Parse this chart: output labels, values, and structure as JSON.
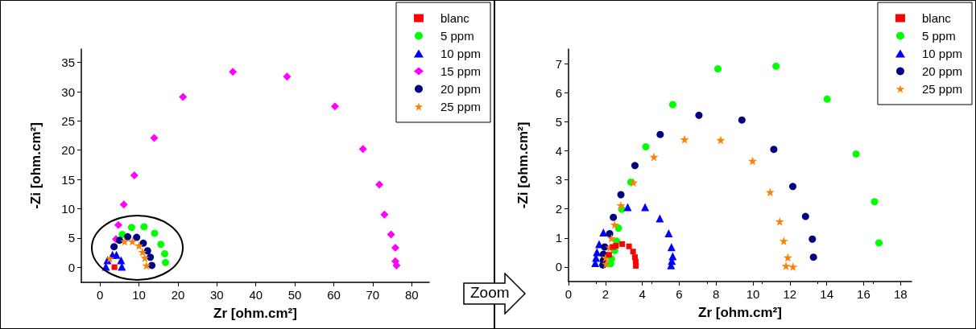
{
  "chart_data": [
    {
      "type": "scatter",
      "xlabel": "Zr [ohm.cm²]",
      "ylabel": "-Zi [ohm.cm²]",
      "xlim": [
        -4.8,
        84.5
      ],
      "ylim": [
        -2.6,
        37.3
      ],
      "xticks": [
        0,
        10,
        20,
        30,
        40,
        50,
        60,
        70,
        80
      ],
      "yticks": [
        0,
        5,
        10,
        15,
        20,
        25,
        30,
        35
      ],
      "legend": "top right",
      "grid": false,
      "series": [
        {
          "name": "blanc",
          "color": "#ff0000",
          "marker": "square",
          "x": [
            3.7
          ],
          "values": [
            0.0
          ]
        },
        {
          "name": "5 ppm",
          "color": "#00ff00",
          "marker": "circle",
          "x": [
            5.7,
            8.1,
            11.3,
            14.0,
            15.6,
            16.6,
            16.8
          ],
          "values": [
            5.6,
            6.8,
            6.9,
            5.8,
            3.9,
            2.3,
            0.8
          ]
        },
        {
          "name": "10 ppm",
          "color": "#0000ff",
          "marker": "triangle",
          "x": [
            1.5,
            1.9,
            3.2,
            4.2,
            5.4,
            5.6
          ],
          "values": [
            0.1,
            1.2,
            2.1,
            2.1,
            1.2,
            0.1
          ]
        },
        {
          "name": "15 ppm",
          "color": "#ff00ff",
          "marker": "diamond",
          "x": [
            4.1,
            4.7,
            6.1,
            8.8,
            13.9,
            21.3,
            34.1,
            48.0,
            60.3,
            67.5,
            71.7,
            73.0,
            74.7,
            75.8,
            75.8,
            76.1
          ],
          "values": [
            4.8,
            7.2,
            10.7,
            15.7,
            22.1,
            29.1,
            33.4,
            32.6,
            27.5,
            20.2,
            14.1,
            9.0,
            5.6,
            3.3,
            1.0,
            0.3
          ]
        },
        {
          "name": "20 ppm",
          "color": "#000080",
          "marker": "circle",
          "x": [
            3.6,
            5.0,
            7.1,
            9.4,
            11.1,
            12.2,
            12.9,
            13.3
          ],
          "values": [
            3.5,
            4.6,
            5.2,
            5.1,
            4.1,
            2.8,
            1.7,
            0.3
          ]
        },
        {
          "name": "25 ppm",
          "color": "#ff8000",
          "marker": "star",
          "x": [
            2.5,
            6.3,
            8.3,
            10.0,
            10.9,
            11.5,
            11.9
          ],
          "values": [
            1.5,
            4.4,
            4.4,
            3.7,
            2.6,
            1.6,
            0.3
          ]
        }
      ]
    },
    {
      "type": "scatter",
      "xlabel": "Zr [ohm.cm²]",
      "ylabel": "-Zi [ohm.cm²]",
      "xlim": [
        0,
        18.6
      ],
      "ylim": [
        -0.5,
        7.5
      ],
      "xticks": [
        0,
        2,
        4,
        6,
        8,
        10,
        12,
        14,
        16,
        18
      ],
      "yticks": [
        0,
        1,
        2,
        3,
        4,
        5,
        6,
        7
      ],
      "legend": "top right",
      "grid": false,
      "annotations": [
        "Zoom"
      ],
      "series": [
        {
          "name": "blanc",
          "color": "#ff0000",
          "marker": "square",
          "x": [
            2.2,
            2.4,
            2.57,
            2.91,
            3.28,
            3.5,
            3.6,
            3.64,
            3.65
          ],
          "values": [
            0.42,
            0.69,
            0.73,
            0.79,
            0.71,
            0.53,
            0.34,
            0.19,
            0.04
          ]
        },
        {
          "name": "5 ppm",
          "color": "#00ff00",
          "marker": "circle",
          "x": [
            2.28,
            2.33,
            2.5,
            2.61,
            2.71,
            2.88,
            3.38,
            4.19,
            5.65,
            8.1,
            11.25,
            14.02,
            15.59,
            16.59,
            16.83
          ],
          "values": [
            0.11,
            0.28,
            0.57,
            0.89,
            1.34,
            1.99,
            2.92,
            4.14,
            5.59,
            6.82,
            6.91,
            5.78,
            3.89,
            2.25,
            0.83
          ]
        },
        {
          "name": "10 ppm",
          "color": "#0000ff",
          "marker": "triangle",
          "x": [
            1.45,
            1.49,
            1.54,
            1.66,
            1.89,
            3.21,
            4.15,
            4.95,
            5.43,
            5.58,
            5.65,
            5.6,
            5.56
          ],
          "values": [
            0.14,
            0.32,
            0.51,
            0.79,
            1.19,
            2.06,
            2.06,
            1.67,
            1.16,
            0.68,
            0.37,
            0.21,
            0.06
          ]
        },
        {
          "name": "20 ppm",
          "color": "#000080",
          "marker": "circle",
          "x": [
            1.86,
            1.89,
            1.89,
            1.96,
            2.23,
            2.43,
            2.84,
            3.6,
            4.97,
            7.07,
            9.4,
            11.13,
            12.16,
            12.85,
            13.22,
            13.28
          ],
          "values": [
            0.07,
            0.23,
            0.44,
            0.69,
            1.15,
            1.71,
            2.49,
            3.49,
            4.56,
            5.22,
            5.06,
            4.05,
            2.77,
            1.74,
            0.96,
            0.34
          ]
        },
        {
          "name": "25 ppm",
          "color": "#ff8000",
          "marker": "star",
          "x": [
            2.03,
            2.01,
            2.23,
            2.33,
            2.5,
            2.84,
            3.52,
            4.63,
            6.29,
            8.25,
            9.98,
            10.93,
            11.45,
            11.67,
            11.89,
            11.79,
            12.17
          ],
          "values": [
            0.11,
            0.32,
            0.67,
            0.99,
            1.46,
            2.12,
            2.91,
            3.79,
            4.39,
            4.37,
            3.65,
            2.58,
            1.57,
            0.9,
            0.33,
            0.04,
            0.01
          ]
        }
      ]
    }
  ]
}
